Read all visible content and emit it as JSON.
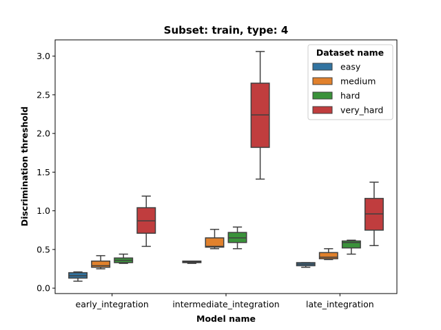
{
  "chart_data": {
    "type": "box",
    "title": "Subset: train, type: 4",
    "xlabel": "Model name",
    "ylabel": "Discrimination threshold",
    "categories": [
      "early_integration",
      "intermediate_integration",
      "late_integration"
    ],
    "yticks": [
      "0.0",
      "0.5",
      "1.0",
      "1.5",
      "2.0",
      "2.5",
      "3.0"
    ],
    "ylim": [
      -0.07,
      3.21
    ],
    "grid": false,
    "legend": {
      "title": "Dataset name",
      "position": "top-right",
      "entries": [
        "easy",
        "medium",
        "hard",
        "very_hard"
      ]
    },
    "series": [
      {
        "name": "easy",
        "color": "#3274a1",
        "boxes": [
          {
            "min": 0.09,
            "q1": 0.13,
            "median": 0.16,
            "q3": 0.2,
            "max": 0.21
          },
          {
            "min": 0.32,
            "q1": 0.33,
            "median": 0.34,
            "q3": 0.35,
            "max": 0.35
          },
          {
            "min": 0.27,
            "q1": 0.29,
            "median": 0.31,
            "q3": 0.33,
            "max": 0.33
          }
        ]
      },
      {
        "name": "medium",
        "color": "#e1812c",
        "boxes": [
          {
            "min": 0.25,
            "q1": 0.27,
            "median": 0.29,
            "q3": 0.35,
            "max": 0.42
          },
          {
            "min": 0.51,
            "q1": 0.53,
            "median": 0.54,
            "q3": 0.65,
            "max": 0.76
          },
          {
            "min": 0.37,
            "q1": 0.38,
            "median": 0.4,
            "q3": 0.46,
            "max": 0.51
          }
        ]
      },
      {
        "name": "hard",
        "color": "#3a923a",
        "boxes": [
          {
            "min": 0.32,
            "q1": 0.33,
            "median": 0.36,
            "q3": 0.39,
            "max": 0.44
          },
          {
            "min": 0.51,
            "q1": 0.59,
            "median": 0.65,
            "q3": 0.72,
            "max": 0.79
          },
          {
            "min": 0.44,
            "q1": 0.52,
            "median": 0.59,
            "q3": 0.61,
            "max": 0.62
          }
        ]
      },
      {
        "name": "very_hard",
        "color": "#c03d3e",
        "boxes": [
          {
            "min": 0.54,
            "q1": 0.71,
            "median": 0.87,
            "q3": 1.04,
            "max": 1.19
          },
          {
            "min": 1.41,
            "q1": 1.82,
            "median": 2.24,
            "q3": 2.65,
            "max": 3.06
          },
          {
            "min": 0.55,
            "q1": 0.75,
            "median": 0.96,
            "q3": 1.16,
            "max": 1.37
          }
        ]
      }
    ]
  }
}
